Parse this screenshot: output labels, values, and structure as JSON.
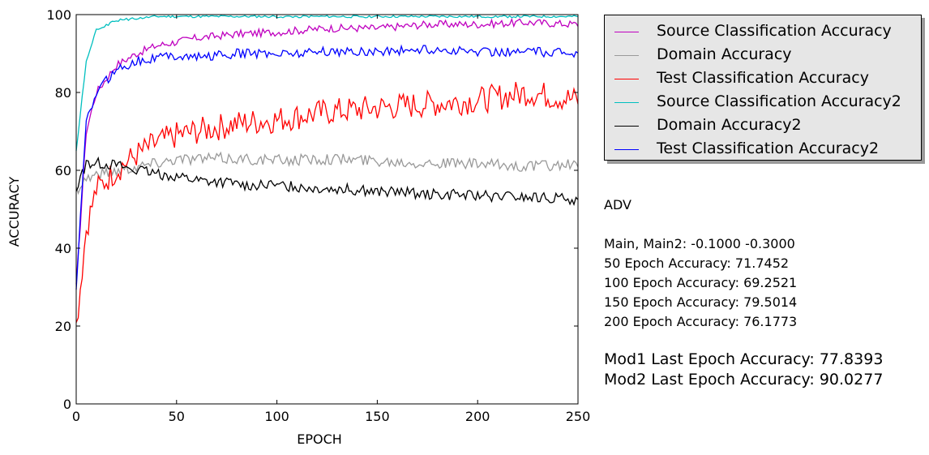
{
  "chart_data": {
    "type": "line",
    "title": "",
    "xlabel": "EPOCH",
    "ylabel": "ACCURACY",
    "xlim": [
      0,
      250
    ],
    "ylim": [
      0,
      100
    ],
    "xticks": [
      "0",
      "50",
      "100",
      "150",
      "200",
      "250"
    ],
    "yticks": [
      "0",
      "20",
      "40",
      "60",
      "80",
      "100"
    ],
    "grid": false,
    "legend_position": "outside-right-top",
    "x": [
      0,
      5,
      10,
      20,
      30,
      40,
      50,
      60,
      80,
      100,
      125,
      150,
      175,
      200,
      225,
      250
    ],
    "series": [
      {
        "name": "Source Classification Accuracy",
        "color": "#bf00bf",
        "values": [
          30,
          70,
          80,
          87,
          90,
          92,
          93,
          94,
          95,
          95.5,
          96.5,
          96.5,
          97.5,
          97.5,
          98,
          97.5
        ]
      },
      {
        "name": "Domain Accuracy",
        "color": "#999999",
        "values": [
          55,
          58,
          59,
          60,
          61,
          62,
          63,
          63,
          63,
          62.5,
          63,
          62.5,
          62,
          61.5,
          61,
          61.5
        ]
      },
      {
        "name": "Test Classification Accuracy",
        "color": "#ff0000",
        "values": [
          20,
          45,
          55,
          60,
          64,
          67,
          69,
          70,
          72,
          73,
          75,
          76,
          77,
          78,
          80,
          78
        ]
      },
      {
        "name": "Source Classification Accuracy2",
        "color": "#00bfbf",
        "values": [
          65,
          88,
          96,
          98.5,
          99,
          99.5,
          99.5,
          99.5,
          99.5,
          99.5,
          99.5,
          99.5,
          99.5,
          99.5,
          99.5,
          99.5
        ]
      },
      {
        "name": "Domain Accuracy2",
        "color": "#000000",
        "values": [
          55,
          62,
          62,
          61.5,
          60,
          59,
          58.5,
          57.5,
          56.5,
          56,
          55.5,
          54.5,
          54,
          53.5,
          53,
          52.5
        ]
      },
      {
        "name": "Test Classification Accuracy2",
        "color": "#0000ff",
        "values": [
          30,
          72,
          80,
          86,
          88,
          89,
          89.5,
          89,
          90,
          90,
          90.5,
          90.5,
          91,
          90.5,
          90.5,
          90
        ]
      }
    ]
  },
  "info": {
    "method": "ADV",
    "main_params": "Main, Main2: -0.1000 -0.3000",
    "epoch50": "50 Epoch Accuracy: 71.7452",
    "epoch100": "100 Epoch Accuracy: 69.2521",
    "epoch150": "150 Epoch Accuracy: 79.5014",
    "epoch200": "200 Epoch Accuracy: 76.1773",
    "mod1_last": "Mod1 Last Epoch Accuracy: 77.8393",
    "mod2_last": "Mod2 Last Epoch Accuracy: 90.0277"
  }
}
